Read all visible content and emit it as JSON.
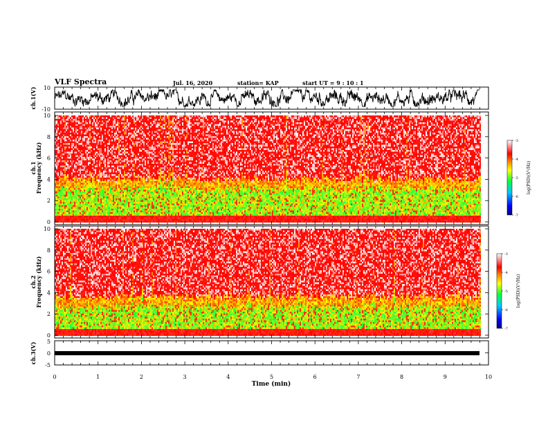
{
  "header": {
    "title": "VLF Spectra",
    "date": "Jul. 16, 2020",
    "station": "station= KAP",
    "start": "start UT =  9 : 10 : 1"
  },
  "chart_data": [
    {
      "type": "line",
      "title": "",
      "ylabel": "ch.1(V)",
      "xlim": [
        0,
        10
      ],
      "ylim": [
        -10,
        10
      ],
      "yticks": [
        "10",
        "-10"
      ],
      "description_series": "continuous noisy waveform",
      "data_extent_min": 9.8,
      "color": "#000000"
    },
    {
      "type": "heatmap",
      "ylabel": "Frequency (kHz)",
      "channel_label": "ch.1",
      "xlim": [
        0,
        10
      ],
      "ylim": [
        0,
        10
      ],
      "yticks": [
        "0",
        "2",
        "4",
        "6",
        "8",
        "10"
      ],
      "data_extent_min": 9.8,
      "colorbar": {
        "label": "log(PSD)(V²/Hz)",
        "range": [
          -7,
          -3
        ],
        "ticks": [
          "-3",
          "-4",
          "-5",
          "-6",
          "-7"
        ]
      }
    },
    {
      "type": "heatmap",
      "ylabel": "Frequency (kHz)",
      "channel_label": "ch.2",
      "xlim": [
        0,
        10
      ],
      "ylim": [
        0,
        10
      ],
      "yticks": [
        "0",
        "2",
        "4",
        "6",
        "8",
        "10"
      ],
      "data_extent_min": 9.8,
      "colorbar": {
        "label": "log(PSD)(V²/Hz)",
        "range": [
          -7,
          -3
        ],
        "ticks": [
          "-3",
          "-4",
          "-5",
          "-6",
          "-7"
        ]
      }
    },
    {
      "type": "line",
      "ylabel": "ch.3(V)",
      "xlim": [
        0,
        10
      ],
      "ylim": [
        -5,
        5
      ],
      "yticks": [
        "5",
        "0",
        "-5"
      ],
      "data_extent_min": 9.8,
      "color": "#000000"
    }
  ],
  "xaxis": {
    "label": "Time (min)",
    "ticks": [
      "0",
      "1",
      "2",
      "3",
      "4",
      "5",
      "6",
      "7",
      "8",
      "9",
      "10"
    ]
  }
}
